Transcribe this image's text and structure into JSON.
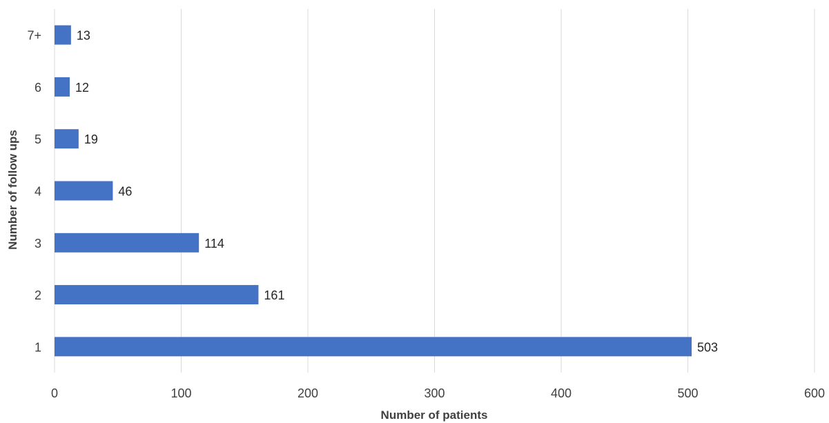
{
  "chart_data": {
    "type": "bar",
    "orientation": "horizontal",
    "categories": [
      "1",
      "2",
      "3",
      "4",
      "5",
      "6",
      "7+"
    ],
    "values": [
      503,
      161,
      114,
      46,
      19,
      12,
      13
    ],
    "xlabel": "Number of patients",
    "ylabel": "Number of follow ups",
    "xlim": [
      0,
      600
    ],
    "xticks": [
      0,
      100,
      200,
      300,
      400,
      500,
      600
    ],
    "grid": "vertical",
    "legend": "none",
    "data_labels": true,
    "bar_color": "#4472c4"
  }
}
